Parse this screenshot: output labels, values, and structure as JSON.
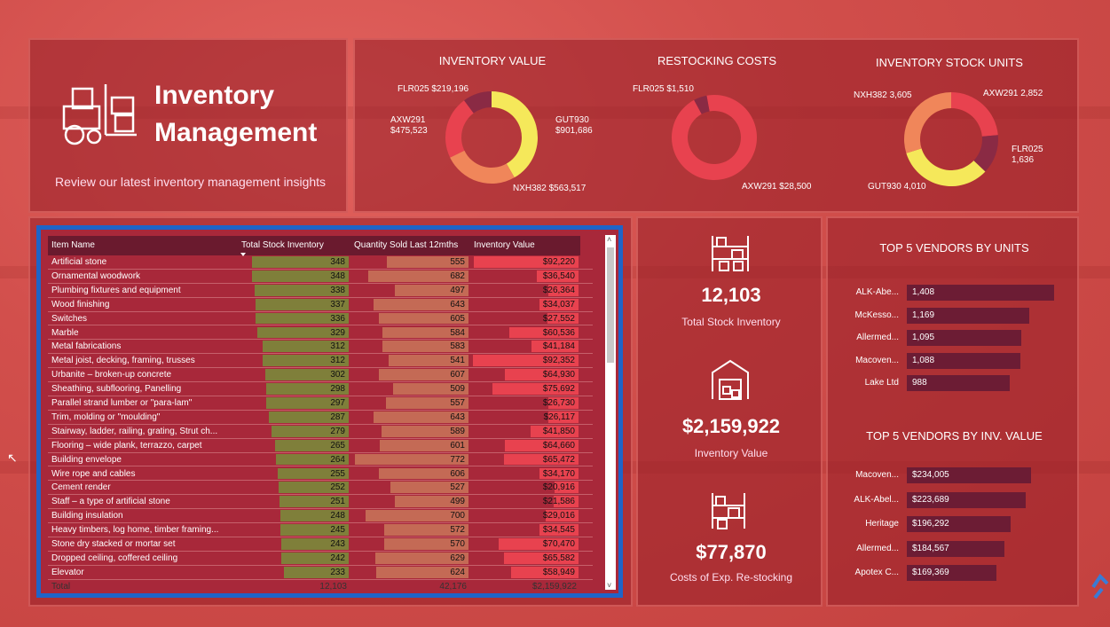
{
  "header": {
    "title": "Inventory Management",
    "subtitle": "Review our latest inventory management insights"
  },
  "chart_data": [
    {
      "type": "pie",
      "title": "INVENTORY VALUE",
      "labels": [
        "GUT930",
        "NXH382",
        "AXW291",
        "FLR025"
      ],
      "values": [
        901686,
        563517,
        475523,
        219196
      ],
      "value_labels": [
        "$901,686",
        "$563,517",
        "$475,523",
        "$219,196"
      ],
      "colors": [
        "#f5e85a",
        "#f0865a",
        "#e8424f",
        "#8a2a44"
      ]
    },
    {
      "type": "pie",
      "title": "RESTOCKING COSTS",
      "labels": [
        "AXW291",
        "FLR025"
      ],
      "values": [
        28500,
        1510
      ],
      "value_labels": [
        "$28,500",
        "$1,510"
      ],
      "colors": [
        "#e8424f",
        "#8a2a44"
      ]
    },
    {
      "type": "pie",
      "title": "INVENTORY STOCK UNITS",
      "labels": [
        "AXW291",
        "FLR025",
        "GUT930",
        "NXH382"
      ],
      "values": [
        2852,
        1636,
        4010,
        3605
      ],
      "value_labels": [
        "2,852",
        "1,636",
        "4,010",
        "3,605"
      ],
      "colors": [
        "#e8424f",
        "#8a2a44",
        "#f5e85a",
        "#f0865a"
      ]
    },
    {
      "type": "table",
      "headers": [
        "Item Name",
        "Total Stock Inventory",
        "Quantity Sold Last 12mths",
        "Inventory Value"
      ],
      "rows": [
        [
          "Artificial stone",
          348,
          555,
          "$92,220"
        ],
        [
          "Ornamental woodwork",
          348,
          682,
          "$36,540"
        ],
        [
          "Plumbing fixtures and equipment",
          338,
          497,
          "$26,364"
        ],
        [
          "Wood finishing",
          337,
          643,
          "$34,037"
        ],
        [
          "Switches",
          336,
          605,
          "$27,552"
        ],
        [
          "Marble",
          329,
          584,
          "$60,536"
        ],
        [
          "Metal fabrications",
          312,
          583,
          "$41,184"
        ],
        [
          "Metal joist, decking, framing, trusses",
          312,
          541,
          "$92,352"
        ],
        [
          "Urbanite – broken-up concrete",
          302,
          607,
          "$64,930"
        ],
        [
          "Sheathing, subflooring, Panelling",
          298,
          509,
          "$75,692"
        ],
        [
          "Parallel strand lumber or \"para-lam\"",
          297,
          557,
          "$26,730"
        ],
        [
          "Trim, molding or \"moulding\"",
          287,
          643,
          "$26,117"
        ],
        [
          "Stairway, ladder, railing, grating, Strut ch...",
          279,
          589,
          "$41,850"
        ],
        [
          "Flooring – wide plank, terrazzo, carpet",
          265,
          601,
          "$64,660"
        ],
        [
          "Building envelope",
          264,
          772,
          "$65,472"
        ],
        [
          "Wire rope and cables",
          255,
          606,
          "$34,170"
        ],
        [
          "Cement render",
          252,
          527,
          "$20,916"
        ],
        [
          "Staff – a type of artificial stone",
          251,
          499,
          "$21,586"
        ],
        [
          "Building insulation",
          248,
          700,
          "$29,016"
        ],
        [
          "Heavy timbers, log home, timber framing...",
          245,
          572,
          "$34,545"
        ],
        [
          "Stone dry stacked or mortar set",
          243,
          570,
          "$70,470"
        ],
        [
          "Dropped ceiling, coffered ceiling",
          242,
          629,
          "$65,582"
        ],
        [
          "Elevator",
          233,
          624,
          "$58,949"
        ]
      ],
      "total": [
        "Total",
        "12,103",
        "42,176",
        "$2,159,922"
      ]
    },
    {
      "type": "bar",
      "title": "TOP 5 VENDORS BY UNITS",
      "categories": [
        "ALK-Abe...",
        "McKesso...",
        "Allermed...",
        "Macoven...",
        "Lake Ltd"
      ],
      "values": [
        1408,
        1169,
        1095,
        1088,
        988
      ],
      "value_labels": [
        "1,408",
        "1,169",
        "1,095",
        "1,088",
        "988"
      ]
    },
    {
      "type": "bar",
      "title": "TOP 5 VENDORS BY INV. VALUE",
      "categories": [
        "Macoven...",
        "ALK-Abel...",
        "Heritage",
        "Allermed...",
        "Apotex C..."
      ],
      "values": [
        234005,
        223689,
        196292,
        184567,
        169369
      ],
      "value_labels": [
        "$234,005",
        "$223,689",
        "$196,292",
        "$184,567",
        "$169,369"
      ]
    }
  ],
  "kpis": [
    {
      "value": "12,103",
      "label": "Total Stock Inventory"
    },
    {
      "value": "$2,159,922",
      "label": "Inventory Value"
    },
    {
      "value": "$77,870",
      "label": "Costs of Exp. Re-stocking"
    }
  ],
  "colors": {
    "stock_bar": "#7f7f3a",
    "sold_bar": "#c46a55",
    "value_bar": "#e8424f"
  }
}
